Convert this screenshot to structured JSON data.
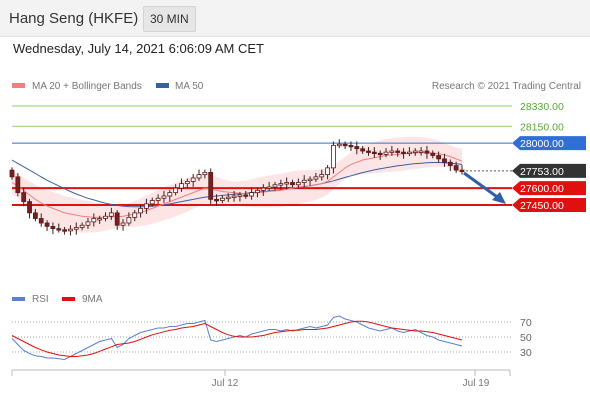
{
  "header": {
    "title": "Hang Seng (HKFE)",
    "timeframe": "30 MIN",
    "timestamp": "Wednesday, July 14, 2021 6:06:09 AM CET"
  },
  "legend": {
    "ma20_bollinger": "MA 20 + Bollinger Bands",
    "ma50": "MA 50",
    "rsi": "RSI",
    "ma9": "9MA",
    "credit": "Research © 2021 Trading Central"
  },
  "colors": {
    "ma20": "#f08080",
    "ma50": "#3a5fa0",
    "bollinger_fill": "#fde0e0",
    "resistance_green": "#8fce6e",
    "pivot_blue": "#2f6fd6",
    "support_red": "#e01010",
    "last_price_bg": "#333333",
    "rsi": "#5b7fd6",
    "ma9": "#e01010",
    "arrow": "#2e5fa8"
  },
  "chart_data": [
    {
      "type": "candlestick",
      "title": "",
      "x_labels": [
        "Jul 12",
        "Jul 19"
      ],
      "ylim": [
        27120,
        28400
      ],
      "levels": [
        {
          "value": "28330.00",
          "kind": "resistance",
          "color": "#8fce6e"
        },
        {
          "value": "28150.00",
          "kind": "resistance",
          "color": "#8fce6e"
        },
        {
          "value": "28000.00",
          "kind": "pivot",
          "color": "#2f6fd6"
        },
        {
          "value": "27753.00",
          "kind": "last",
          "color": "#333333"
        },
        {
          "value": "27600.00",
          "kind": "support",
          "color": "#e01010"
        },
        {
          "value": "27450.00",
          "kind": "support",
          "color": "#e01010"
        }
      ],
      "close_series": [
        27700,
        27560,
        27480,
        27380,
        27330,
        27290,
        27260,
        27240,
        27230,
        27220,
        27235,
        27250,
        27270,
        27300,
        27330,
        27330,
        27350,
        27380,
        27270,
        27290,
        27340,
        27380,
        27420,
        27460,
        27490,
        27510,
        27530,
        27560,
        27600,
        27640,
        27660,
        27690,
        27720,
        27740,
        27500,
        27490,
        27510,
        27520,
        27530,
        27540,
        27530,
        27560,
        27580,
        27600,
        27610,
        27630,
        27640,
        27650,
        27630,
        27650,
        27670,
        27680,
        27700,
        27720,
        27780,
        27980,
        27990,
        27980,
        27970,
        27950,
        27930,
        27920,
        27910,
        27900,
        27920,
        27930,
        27920,
        27910,
        27920,
        27930,
        27930,
        27910,
        27890,
        27860,
        27830,
        27800,
        27760,
        27753
      ],
      "ma20": [
        27650,
        27620,
        27580,
        27540,
        27500,
        27470,
        27440,
        27420,
        27400,
        27380,
        27370,
        27360,
        27350,
        27345,
        27340,
        27340,
        27342,
        27345,
        27345,
        27350,
        27360,
        27370,
        27385,
        27400,
        27420,
        27440,
        27460,
        27480,
        27500,
        27520,
        27540,
        27560,
        27580,
        27600,
        27590,
        27580,
        27570,
        27565,
        27560,
        27555,
        27550,
        27555,
        27560,
        27565,
        27570,
        27575,
        27580,
        27590,
        27600,
        27610,
        27615,
        27620,
        27630,
        27640,
        27660,
        27700,
        27740,
        27780,
        27810,
        27830,
        27850,
        27860,
        27870,
        27880,
        27890,
        27895,
        27900,
        27905,
        27910,
        27912,
        27915,
        27915,
        27912,
        27905,
        27895,
        27880,
        27860,
        27840
      ],
      "ma50": [
        27850,
        27820,
        27790,
        27760,
        27730,
        27700,
        27670,
        27645,
        27620,
        27595,
        27570,
        27548,
        27528,
        27510,
        27495,
        27480,
        27466,
        27455,
        27446,
        27440,
        27436,
        27434,
        27434,
        27436,
        27440,
        27445,
        27452,
        27460,
        27470,
        27480,
        27490,
        27500,
        27510,
        27520,
        27525,
        27530,
        27535,
        27540,
        27545,
        27550,
        27555,
        27560,
        27565,
        27570,
        27575,
        27580,
        27585,
        27590,
        27598,
        27606,
        27614,
        27622,
        27630,
        27640,
        27652,
        27665,
        27680,
        27695,
        27710,
        27725,
        27738,
        27750,
        27762,
        27772,
        27782,
        27790,
        27798,
        27805,
        27812,
        27818,
        27822,
        27826,
        27828,
        27828,
        27826,
        27822,
        27816,
        27810
      ]
    },
    {
      "type": "line",
      "title": "",
      "yticks": [
        "70",
        "50",
        "30"
      ],
      "ylim": [
        10,
        90
      ],
      "series": [
        {
          "name": "RSI",
          "values": [
            48,
            40,
            32,
            28,
            25,
            24,
            22,
            22,
            21,
            20,
            24,
            28,
            32,
            36,
            40,
            44,
            46,
            48,
            36,
            40,
            48,
            52,
            56,
            58,
            60,
            62,
            62,
            64,
            64,
            66,
            68,
            68,
            70,
            72,
            46,
            44,
            46,
            48,
            50,
            52,
            50,
            54,
            56,
            58,
            60,
            60,
            58,
            60,
            58,
            60,
            62,
            64,
            62,
            64,
            66,
            76,
            78,
            74,
            72,
            70,
            66,
            62,
            60,
            58,
            60,
            62,
            58,
            56,
            58,
            60,
            56,
            52,
            50,
            46,
            44,
            42,
            40,
            38
          ]
        },
        {
          "name": "9MA",
          "values": [
            52,
            48,
            44,
            40,
            36,
            33,
            30,
            28,
            26,
            25,
            24,
            24,
            25,
            26,
            28,
            31,
            34,
            37,
            40,
            41,
            42,
            44,
            47,
            50,
            53,
            55,
            57,
            59,
            60,
            62,
            63,
            64,
            66,
            68,
            64,
            60,
            56,
            53,
            51,
            50,
            50,
            50,
            51,
            52,
            54,
            56,
            57,
            58,
            59,
            59,
            60,
            60,
            60,
            61,
            62,
            64,
            66,
            68,
            70,
            71,
            71,
            70,
            68,
            66,
            64,
            62,
            61,
            60,
            59,
            58,
            58,
            57,
            56,
            54,
            52,
            50,
            48,
            46
          ]
        }
      ]
    }
  ]
}
